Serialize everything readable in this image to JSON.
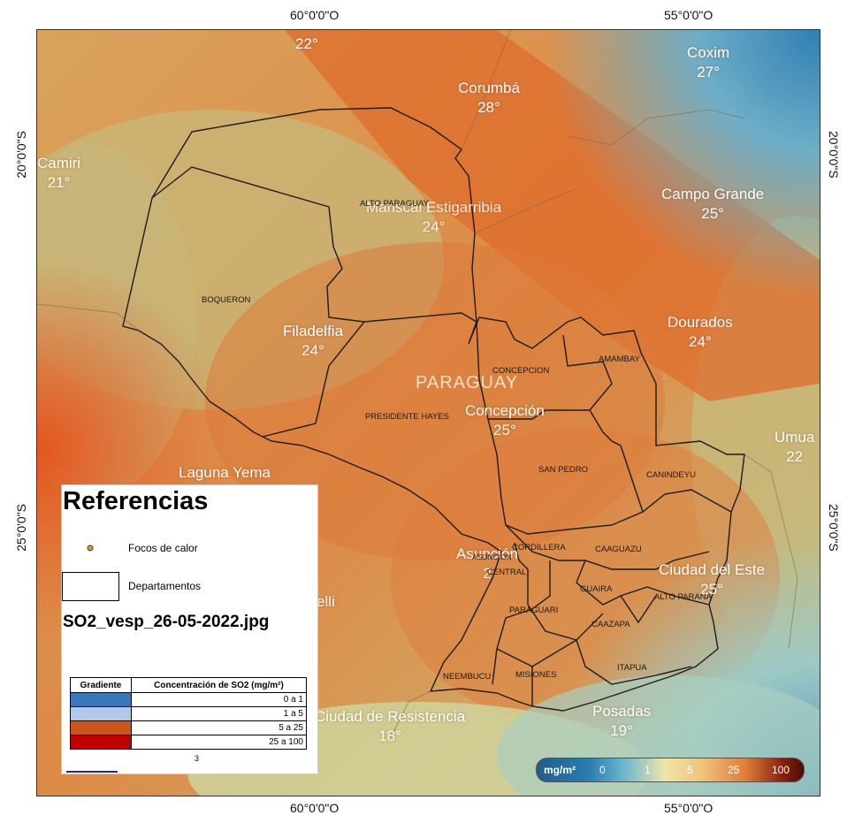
{
  "grid": {
    "top_lon_left": "60°0'0\"O",
    "top_lon_right": "55°0'0\"O",
    "bottom_lon_left": "60°0'0\"O",
    "bottom_lon_right": "55°0'0\"O",
    "left_lat_top": "20°0'0\"S",
    "left_lat_bottom": "25°0'0\"S",
    "right_lat_top": "20°0'0\"S",
    "right_lat_bottom": "25°0'0\"S"
  },
  "cities": [
    {
      "name": "",
      "temp": "22°"
    },
    {
      "name": "Corumbá",
      "temp": "28°"
    },
    {
      "name": "Coxim",
      "temp": "27°"
    },
    {
      "name": "Camiri",
      "temp": "21°"
    },
    {
      "name": "Mariscal Estigarribia",
      "temp": "24°"
    },
    {
      "name": "Campo Grande",
      "temp": "25°"
    },
    {
      "name": "Filadelfia",
      "temp": "24°"
    },
    {
      "name": "Dourados",
      "temp": "24°"
    },
    {
      "name": "Concepción",
      "temp": "25°"
    },
    {
      "name": "Umua",
      "temp": "22"
    },
    {
      "name": "Laguna Yema",
      "temp": ""
    },
    {
      "name": "Asunción",
      "temp": "2"
    },
    {
      "name": "Ciudad del Este",
      "temp": "25°"
    },
    {
      "name": "elli",
      "temp": ""
    },
    {
      "name": "Ciudad de Resistencia",
      "temp": "18°"
    },
    {
      "name": "Posadas",
      "temp": "19°"
    }
  ],
  "country_label": "PARAGUAY",
  "departments": [
    "ALTO PARAGUAY",
    "BOQUERON",
    "CONCEPCION",
    "AMAMBAY",
    "PRESIDENTE HAYES",
    "SAN PEDRO",
    "CANINDEYU",
    "CORDILLERA",
    "ASUNCION",
    "CENTRAL",
    "CAAGUAZU",
    "GUAIRA",
    "ALTO PARANA",
    "PARAGUARI",
    "CAAZAPA",
    "NEEMBUCU",
    "MISIONES",
    "ITAPUA"
  ],
  "legend": {
    "title": "Referencias",
    "hotspots_label": "Focos de calor",
    "departments_label": "Departamentos",
    "file_name": "SO2_vesp_26-05-2022.jpg",
    "table_header_left": "Gradiente",
    "table_header_right": "Concentración de SO2 (mg/m²)",
    "rows": [
      {
        "range": "0 a 1",
        "color": "#3a78bd"
      },
      {
        "range": "1 a 5",
        "color": "#b3c7e8"
      },
      {
        "range": "5 a 25",
        "color": "#c9561a"
      },
      {
        "range": "25 a 100",
        "color": "#c00000"
      }
    ],
    "stray": "3"
  },
  "scale": {
    "unit": "mg/m²",
    "ticks": [
      "0",
      "1",
      "5",
      "25",
      "100"
    ]
  },
  "colors": {
    "hot": "#e8702f",
    "warm": "#dea25c",
    "neutral": "#c9bd7a",
    "cool": "#2f7fb4"
  }
}
